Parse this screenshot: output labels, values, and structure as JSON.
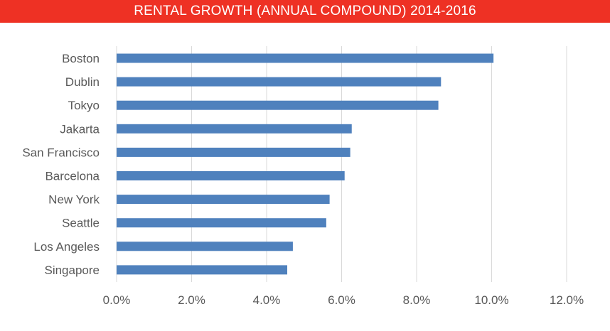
{
  "header": {
    "title": "RENTAL GROWTH (ANNUAL COMPOUND) 2014-2016"
  },
  "chart_data": {
    "type": "bar",
    "orientation": "horizontal",
    "title": "RENTAL GROWTH (ANNUAL COMPOUND) 2014-2016",
    "categories": [
      "Boston",
      "Dublin",
      "Tokyo",
      "Jakarta",
      "San Francisco",
      "Barcelona",
      "New York",
      "Seattle",
      "Los Angeles",
      "Singapore"
    ],
    "values": [
      10.05,
      8.65,
      8.58,
      6.27,
      6.23,
      6.08,
      5.68,
      5.59,
      4.7,
      4.55
    ],
    "xlim": [
      0,
      12
    ],
    "xticks": [
      0,
      2,
      4,
      6,
      8,
      10,
      12
    ],
    "xtick_labels": [
      "0.0%",
      "2.0%",
      "4.0%",
      "6.0%",
      "8.0%",
      "10.0%",
      "12.0%"
    ],
    "grid": "vertical",
    "bar_color": "#4f81bd",
    "title_bar_color": "#ee3124",
    "gridline_color": "#d9d9d9"
  }
}
